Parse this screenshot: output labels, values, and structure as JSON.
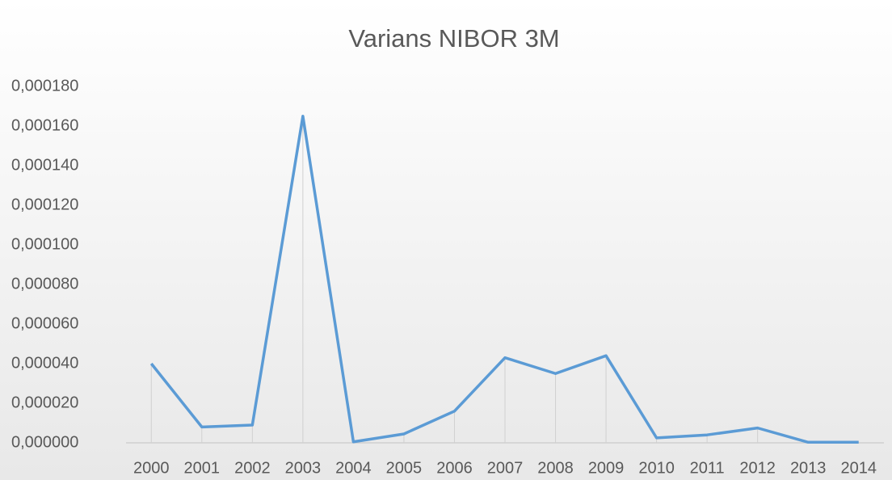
{
  "chart_data": {
    "type": "line",
    "title": "Varians NIBOR 3M",
    "categories": [
      "2000",
      "2001",
      "2002",
      "2003",
      "2004",
      "2005",
      "2006",
      "2007",
      "2008",
      "2009",
      "2010",
      "2011",
      "2012",
      "2013",
      "2014"
    ],
    "series": [
      {
        "name": "Varians",
        "color": "#5b9bd5",
        "values": [
          4e-05,
          8e-06,
          9e-06,
          0.000165,
          5e-07,
          4.5e-06,
          1.6e-05,
          4.3e-05,
          3.5e-05,
          4.4e-05,
          2.5e-06,
          4e-06,
          7.5e-06,
          3e-07,
          3e-07
        ]
      }
    ],
    "ylim": [
      0,
      0.00018
    ],
    "yticks": [
      {
        "value": 0,
        "label": "0,000000"
      },
      {
        "value": 2e-05,
        "label": "0,000020"
      },
      {
        "value": 4e-05,
        "label": "0,000040"
      },
      {
        "value": 6e-05,
        "label": "0,000060"
      },
      {
        "value": 8e-05,
        "label": "0,000080"
      },
      {
        "value": 0.0001,
        "label": "0,000100"
      },
      {
        "value": 0.00012,
        "label": "0,000120"
      },
      {
        "value": 0.00014,
        "label": "0,000140"
      },
      {
        "value": 0.00016,
        "label": "0,000160"
      },
      {
        "value": 0.00018,
        "label": "0,000180"
      }
    ],
    "drop_lines": true
  }
}
